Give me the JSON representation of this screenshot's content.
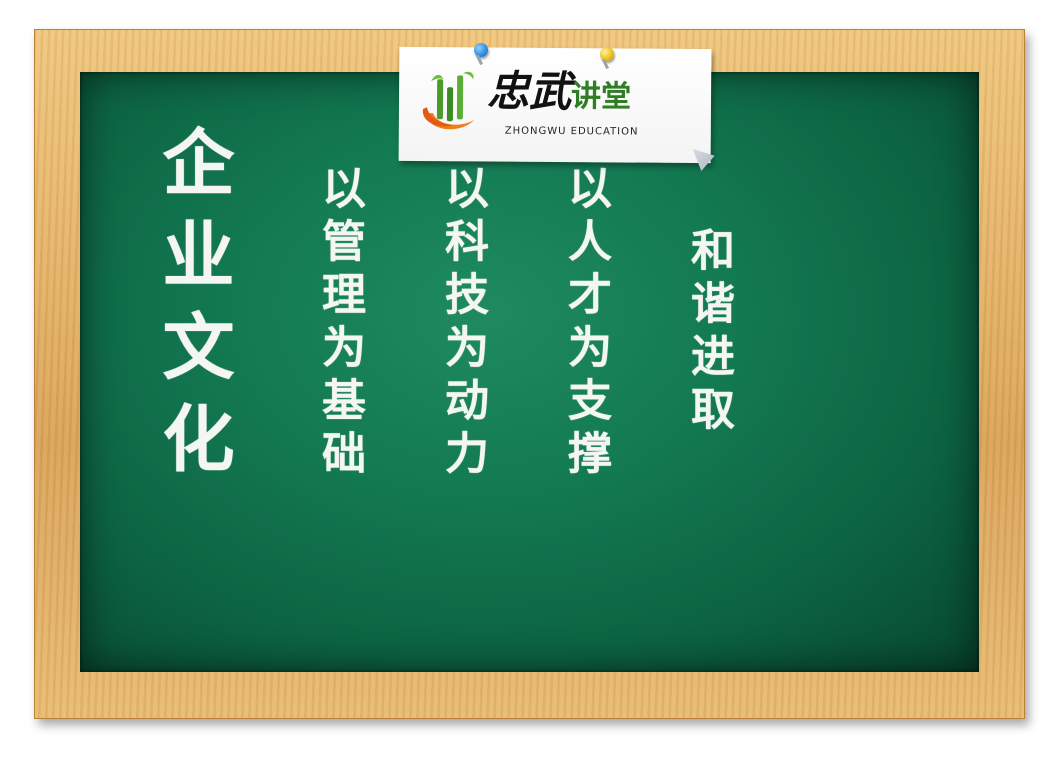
{
  "logo": {
    "brand_cn": "忠武",
    "hall_cn": "讲堂",
    "brand_en": "ZHONGWU EDUCATION"
  },
  "board": {
    "title": "企业文化",
    "columns": [
      {
        "text": "以管理为基础"
      },
      {
        "text": "以科技为动力"
      },
      {
        "text": "以人才为支撑"
      },
      {
        "text": "和谐进取"
      }
    ]
  },
  "colors": {
    "board_green": "#137a52",
    "frame_wood": "#e3b066",
    "chalk": "#f4f6f2",
    "logo_green": "#2f7d24",
    "logo_orange": "#f07d1a"
  }
}
